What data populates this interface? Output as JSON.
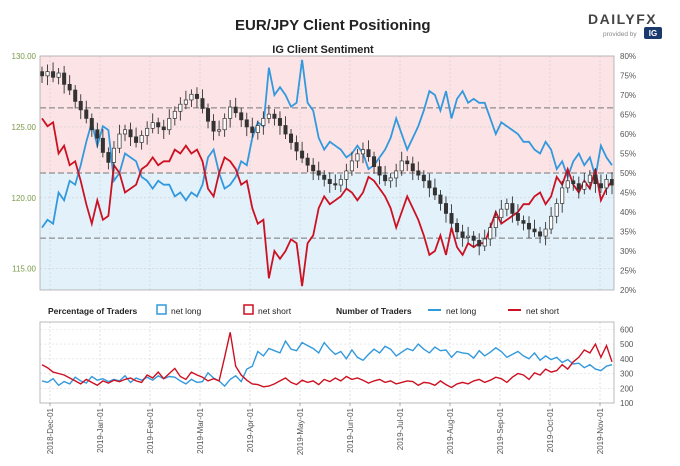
{
  "header": {
    "title": "EUR/JPY Client Positioning",
    "subtitle": "IG Client Sentiment",
    "brand": "DAILYFX",
    "brand_tagline": "provided by",
    "brand_badge": "IG"
  },
  "colors": {
    "net_long": "#3399dd",
    "net_short": "#cc1122",
    "candle": "#333333",
    "long_zone": "#e3f1fb",
    "short_zone": "#fbe3e6",
    "axis_text": "#7a9a4a"
  },
  "legend": {
    "pct_title": "Percentage of Traders",
    "pct_long": "net long",
    "pct_short": "net short",
    "num_title": "Number of Traders",
    "num_long": "net long",
    "num_short": "net short"
  },
  "chart_data": [
    {
      "type": "line",
      "name": "price-and-percentage",
      "left_axis": {
        "ticks": [
          "115.00",
          "120.00",
          "125.00",
          "130.00"
        ],
        "ylim": [
          113.5,
          130
        ]
      },
      "right_axis": {
        "ticks": [
          "20%",
          "25%",
          "30%",
          "35%",
          "40%",
          "45%",
          "50%",
          "55%",
          "60%",
          "65%",
          "70%",
          "75%",
          "80%"
        ],
        "ylim": [
          20,
          80
        ]
      },
      "reference_lines": [
        33.3,
        50,
        66.7
      ],
      "x_ticks": [
        "2018-Dec-01",
        "2019-Jan-01",
        "2019-Feb-01",
        "2019-Mar-01",
        "2019-Apr-01",
        "2019-May-01",
        "2019-Jun-01",
        "2019-Jul-01",
        "2019-Aug-01",
        "2019-Sep-01",
        "2019-Oct-01",
        "2019-Nov-01"
      ],
      "price_close": [
        128.6,
        128.9,
        128.5,
        128.8,
        128.0,
        127.6,
        126.8,
        126.2,
        125.6,
        124.8,
        124.2,
        123.2,
        122.5,
        123.5,
        124.5,
        124.8,
        124.3,
        123.9,
        124.4,
        124.9,
        125.3,
        125.0,
        124.8,
        125.6,
        126.1,
        126.6,
        126.9,
        127.3,
        127.0,
        126.3,
        125.4,
        124.7,
        124.8,
        125.6,
        126.4,
        126.0,
        125.5,
        125.0,
        124.6,
        125.1,
        125.6,
        125.9,
        125.6,
        125.1,
        124.5,
        123.9,
        123.3,
        122.8,
        122.3,
        121.9,
        121.6,
        121.3,
        121.0,
        120.9,
        121.3,
        121.9,
        122.6,
        123.1,
        123.4,
        122.9,
        122.2,
        121.6,
        121.2,
        121.4,
        121.9,
        122.6,
        122.4,
        121.9,
        121.6,
        121.2,
        120.7,
        120.2,
        119.6,
        118.9,
        118.2,
        117.6,
        117.2,
        117.3,
        117.0,
        116.6,
        117.1,
        117.9,
        118.6,
        119.2,
        119.6,
        118.9,
        118.4,
        118.2,
        117.8,
        117.6,
        117.3,
        117.8,
        118.7,
        119.6,
        120.7,
        121.2,
        121.0,
        120.6,
        121.1,
        121.6,
        121.0,
        120.7,
        121.3,
        120.9
      ],
      "net_long_pct": [
        36,
        38,
        37,
        45,
        43,
        48,
        47,
        52,
        58,
        63,
        57,
        62,
        61,
        48,
        50,
        55,
        54,
        53,
        49,
        48,
        46,
        48,
        47,
        47,
        44,
        45,
        43,
        45,
        44,
        47,
        54,
        56,
        50,
        46,
        47,
        49,
        53,
        52,
        59,
        63,
        62,
        77,
        70,
        72,
        70,
        67,
        68,
        79,
        68,
        66,
        59,
        56,
        58,
        57,
        56,
        54,
        55,
        57,
        55,
        51,
        52,
        54,
        56,
        59,
        64,
        60,
        56,
        59,
        62,
        66,
        71,
        70,
        66,
        71,
        64,
        69,
        71,
        68,
        69,
        68,
        68,
        64,
        60,
        63,
        62,
        61,
        60,
        58,
        58,
        56,
        55,
        58,
        56,
        51,
        53,
        49,
        53,
        55,
        52,
        54,
        49,
        57,
        54,
        52
      ],
      "net_short_pct": [
        64,
        62,
        63,
        55,
        57,
        52,
        53,
        48,
        42,
        37,
        43,
        38,
        39,
        52,
        50,
        45,
        46,
        47,
        51,
        52,
        54,
        52,
        53,
        53,
        56,
        55,
        57,
        55,
        56,
        53,
        46,
        44,
        50,
        54,
        53,
        51,
        47,
        48,
        41,
        37,
        38,
        23,
        30,
        28,
        30,
        33,
        32,
        21,
        32,
        34,
        41,
        44,
        42,
        43,
        44,
        46,
        45,
        43,
        45,
        49,
        48,
        46,
        44,
        41,
        36,
        40,
        44,
        41,
        38,
        34,
        29,
        30,
        34,
        29,
        36,
        31,
        29,
        32,
        31,
        32,
        32,
        36,
        40,
        37,
        38,
        39,
        40,
        42,
        42,
        44,
        45,
        42,
        44,
        49,
        47,
        51,
        47,
        45,
        48,
        46,
        51,
        43,
        46,
        48
      ]
    },
    {
      "type": "line",
      "name": "number-of-traders",
      "right_axis": {
        "ticks": [
          "100",
          "200",
          "300",
          "400",
          "500",
          "600"
        ],
        "ylim": [
          100,
          650
        ]
      },
      "x_ticks": [
        "2018-Dec-01",
        "2019-Jan-01",
        "2019-Feb-01",
        "2019-Mar-01",
        "2019-Apr-01",
        "2019-May-01",
        "2019-Jun-01",
        "2019-Jul-01",
        "2019-Aug-01",
        "2019-Sep-01",
        "2019-Oct-01",
        "2019-Nov-01"
      ],
      "net_long_count": [
        250,
        240,
        265,
        220,
        245,
        230,
        275,
        250,
        235,
        280,
        255,
        265,
        245,
        260,
        250,
        285,
        240,
        270,
        255,
        275,
        255,
        285,
        265,
        280,
        275,
        250,
        230,
        260,
        240,
        245,
        305,
        270,
        250,
        215,
        260,
        285,
        245,
        330,
        350,
        450,
        420,
        470,
        455,
        440,
        520,
        465,
        455,
        510,
        490,
        470,
        440,
        510,
        465,
        430,
        450,
        400,
        460,
        410,
        390,
        430,
        465,
        440,
        485,
        465,
        420,
        445,
        470,
        455,
        500,
        465,
        440,
        480,
        455,
        460,
        410,
        450,
        440,
        435,
        405,
        455,
        420,
        445,
        475,
        450,
        410,
        430,
        450,
        420,
        400,
        440,
        390,
        420,
        395,
        410,
        375,
        395,
        365,
        370,
        340,
        360,
        330,
        320,
        350,
        360
      ],
      "net_short_count": [
        360,
        340,
        310,
        300,
        290,
        270,
        250,
        230,
        260,
        240,
        220,
        250,
        235,
        255,
        245,
        260,
        270,
        250,
        240,
        290,
        270,
        310,
        265,
        300,
        335,
        280,
        260,
        310,
        290,
        275,
        250,
        265,
        250,
        410,
        580,
        350,
        290,
        255,
        230,
        225,
        210,
        215,
        230,
        250,
        270,
        240,
        225,
        255,
        240,
        250,
        225,
        260,
        245,
        270,
        250,
        280,
        260,
        270,
        255,
        235,
        250,
        260,
        240,
        250,
        230,
        240,
        250,
        245,
        220,
        240,
        235,
        220,
        250,
        225,
        205,
        230,
        240,
        230,
        250,
        260,
        240,
        255,
        275,
        265,
        240,
        275,
        300,
        290,
        260,
        305,
        290,
        330,
        310,
        320,
        360,
        330,
        380,
        410,
        460,
        440,
        500,
        410,
        490,
        380
      ]
    }
  ]
}
